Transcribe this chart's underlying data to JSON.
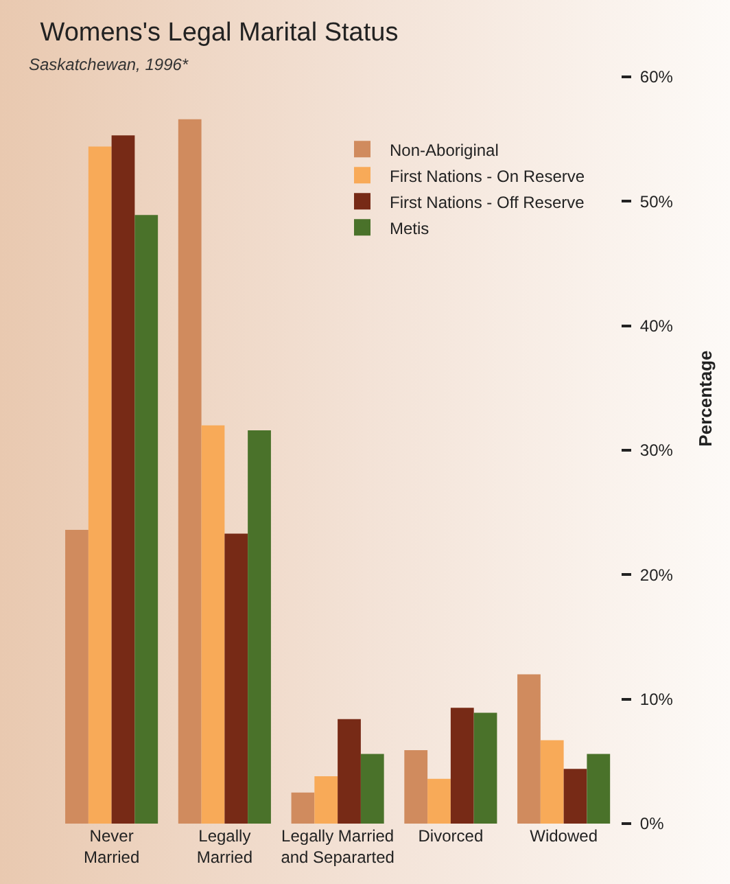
{
  "chart_data": {
    "type": "bar",
    "title": "Womens's Legal Marital Status",
    "subtitle": "Saskatchewan, 1996*",
    "ylabel": "Percentage",
    "categories": [
      "Never Married",
      "Legally Married",
      "Legally Married and Separarted",
      "Divorced",
      "Widowed"
    ],
    "series": [
      {
        "name": "Non-Aboriginal",
        "color": "#d08b5e",
        "values": [
          23.6,
          56.6,
          2.5,
          5.9,
          12.0
        ]
      },
      {
        "name": "First Nations - On Reserve",
        "color": "#f8aa58",
        "values": [
          54.4,
          32.0,
          3.8,
          3.6,
          6.7
        ]
      },
      {
        "name": "First Nations - Off Reserve",
        "color": "#772a16",
        "values": [
          55.3,
          23.3,
          8.4,
          9.3,
          4.4
        ]
      },
      {
        "name": "Metis",
        "color": "#4a722a",
        "values": [
          48.9,
          31.6,
          5.6,
          8.9,
          5.6
        ]
      }
    ],
    "ylim": [
      0,
      60
    ],
    "yticks": [
      {
        "value": 0,
        "label": "0%"
      },
      {
        "value": 10,
        "label": "10%"
      },
      {
        "value": 20,
        "label": "20%"
      },
      {
        "value": 30,
        "label": "30%"
      },
      {
        "value": 40,
        "label": "40%"
      },
      {
        "value": 50,
        "label": "50%"
      },
      {
        "value": 60,
        "label": "60%"
      }
    ],
    "grid": false,
    "legend": "top right"
  }
}
